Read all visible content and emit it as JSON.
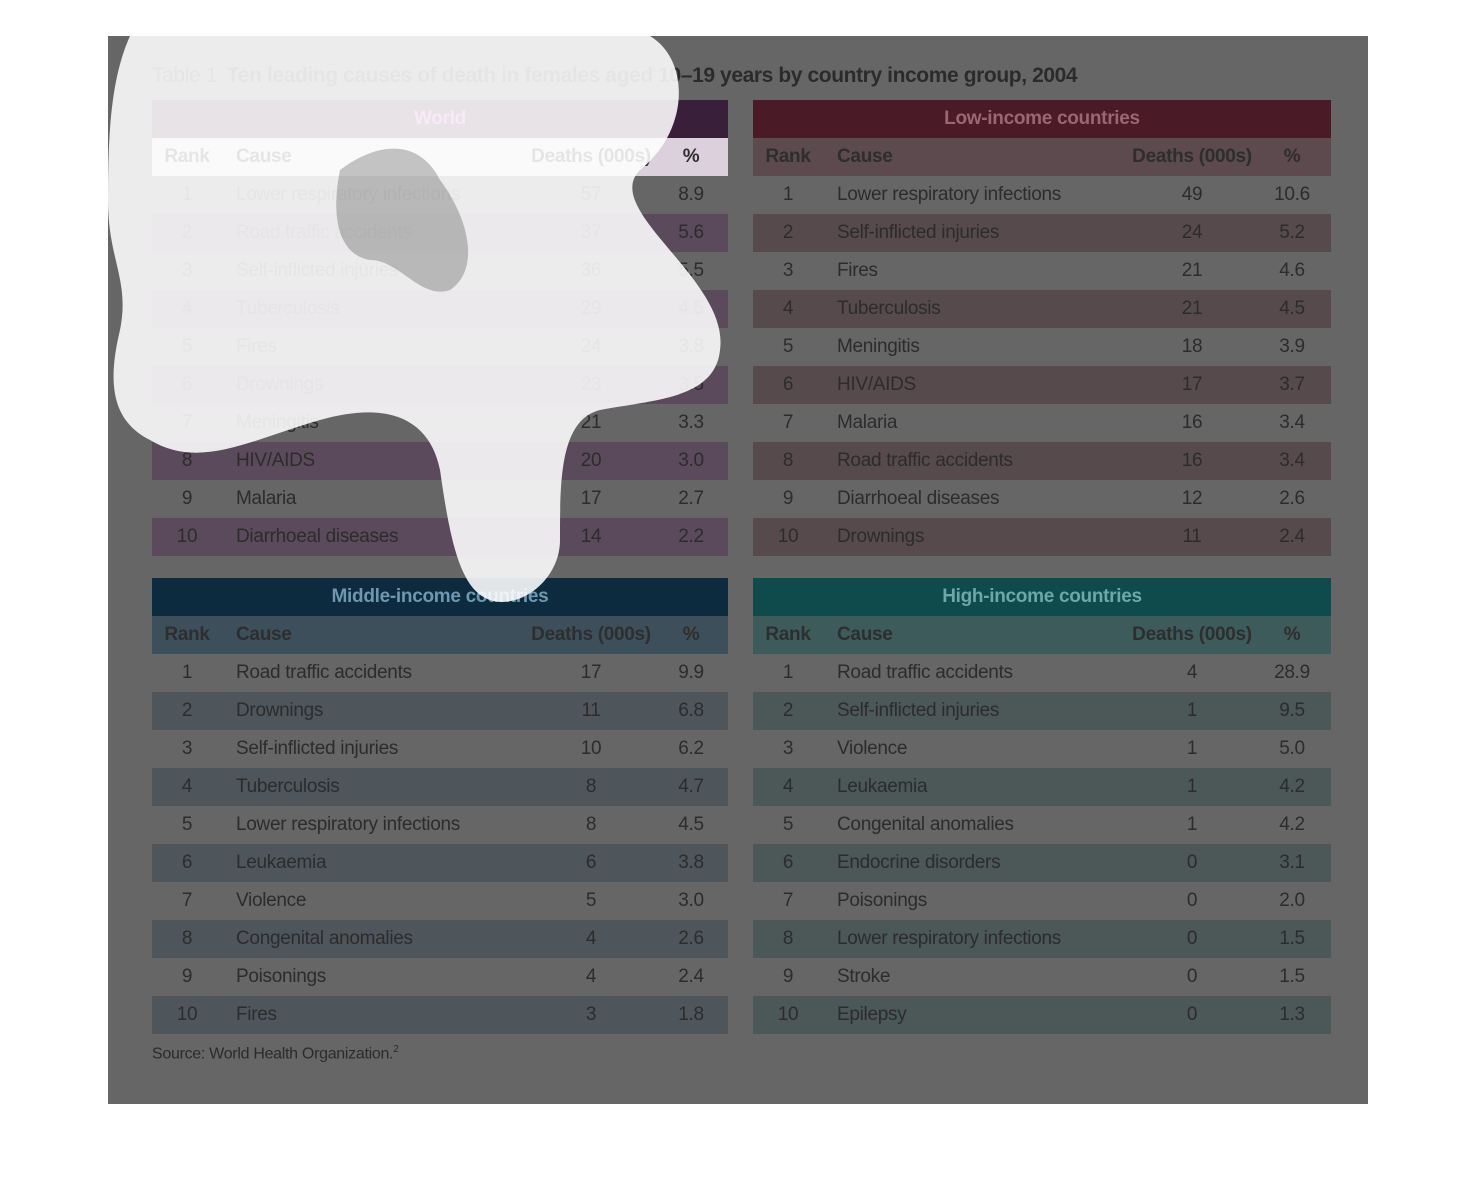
{
  "title": {
    "label": "Table 1",
    "text": "Ten leading causes of death in females aged 10–19 years by country income group, 2004"
  },
  "columns": [
    "Rank",
    "Cause",
    "Deaths (000s)",
    "%"
  ],
  "tables": [
    {
      "heading": "World",
      "colors": {
        "band": "#3a1f3a",
        "band_text": "#bf5fbf",
        "header": "#dcd0dc",
        "stripe": "#5b4a5b",
        "plain": "#666666"
      },
      "rows": [
        [
          "1",
          "Lower respiratory infections",
          "57",
          "8.9"
        ],
        [
          "2",
          "Road traffic accidents",
          "37",
          "5.6"
        ],
        [
          "3",
          "Self-inflicted injuries",
          "36",
          "5.5"
        ],
        [
          "4",
          "Tuberculosis",
          "29",
          "4.5"
        ],
        [
          "5",
          "Fires",
          "24",
          "3.8"
        ],
        [
          "6",
          "Drownings",
          "23",
          "3.5"
        ],
        [
          "7",
          "Meningitis",
          "21",
          "3.3"
        ],
        [
          "8",
          "HIV/AIDS",
          "20",
          "3.0"
        ],
        [
          "9",
          "Malaria",
          "17",
          "2.7"
        ],
        [
          "10",
          "Diarrhoeal diseases",
          "14",
          "2.2"
        ]
      ]
    },
    {
      "heading": "Low-income countries",
      "colors": {
        "band": "#4a1a27",
        "band_text": "#9a6676",
        "header": "#5c4a4e",
        "stripe": "#574a4c",
        "plain": "#666666"
      },
      "rows": [
        [
          "1",
          "Lower respiratory infections",
          "49",
          "10.6"
        ],
        [
          "2",
          "Self-inflicted injuries",
          "24",
          "5.2"
        ],
        [
          "3",
          "Fires",
          "21",
          "4.6"
        ],
        [
          "4",
          "Tuberculosis",
          "21",
          "4.5"
        ],
        [
          "5",
          "Meningitis",
          "18",
          "3.9"
        ],
        [
          "6",
          "HIV/AIDS",
          "17",
          "3.7"
        ],
        [
          "7",
          "Malaria",
          "16",
          "3.4"
        ],
        [
          "8",
          "Road traffic accidents",
          "16",
          "3.4"
        ],
        [
          "9",
          "Diarrhoeal diseases",
          "12",
          "2.6"
        ],
        [
          "10",
          "Drownings",
          "11",
          "2.4"
        ]
      ]
    },
    {
      "heading": "Middle-income countries",
      "colors": {
        "band": "#0c2b3e",
        "band_text": "#6f98b0",
        "header": "#3e4f5c",
        "stripe": "#4e555b",
        "plain": "#666666"
      },
      "rows": [
        [
          "1",
          "Road traffic accidents",
          "17",
          "9.9"
        ],
        [
          "2",
          "Drownings",
          "11",
          "6.8"
        ],
        [
          "3",
          "Self-inflicted injuries",
          "10",
          "6.2"
        ],
        [
          "4",
          "Tuberculosis",
          "8",
          "4.7"
        ],
        [
          "5",
          "Lower respiratory infections",
          "8",
          "4.5"
        ],
        [
          "6",
          "Leukaemia",
          "6",
          "3.8"
        ],
        [
          "7",
          "Violence",
          "5",
          "3.0"
        ],
        [
          "8",
          "Congenital anomalies",
          "4",
          "2.6"
        ],
        [
          "9",
          "Poisonings",
          "4",
          "2.4"
        ],
        [
          "10",
          "Fires",
          "3",
          "1.8"
        ]
      ]
    },
    {
      "heading": "High-income countries",
      "colors": {
        "band": "#0f4a4c",
        "band_text": "#6fa6a8",
        "header": "#3e5b5c",
        "stripe": "#4c5758",
        "plain": "#666666"
      },
      "rows": [
        [
          "1",
          "Road traffic accidents",
          "4",
          "28.9"
        ],
        [
          "2",
          "Self-inflicted injuries",
          "1",
          "9.5"
        ],
        [
          "3",
          "Violence",
          "1",
          "5.0"
        ],
        [
          "4",
          "Leukaemia",
          "1",
          "4.2"
        ],
        [
          "5",
          "Congenital anomalies",
          "1",
          "4.2"
        ],
        [
          "6",
          "Endocrine disorders",
          "0",
          "3.1"
        ],
        [
          "7",
          "Poisonings",
          "0",
          "2.0"
        ],
        [
          "8",
          "Lower respiratory infections",
          "0",
          "1.5"
        ],
        [
          "9",
          "Stroke",
          "0",
          "1.5"
        ],
        [
          "10",
          "Epilepsy",
          "0",
          "1.3"
        ]
      ]
    }
  ],
  "source": {
    "text": "Source: World Health Organization.",
    "note": "2"
  }
}
